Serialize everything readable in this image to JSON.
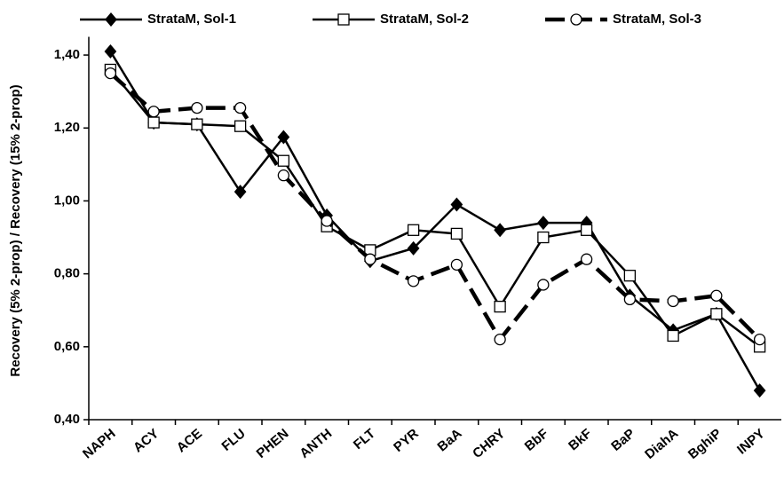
{
  "chart_data": {
    "type": "line",
    "y_label": "Recovery  (5% 2-prop) / Recovery (15% 2-prop)",
    "categories": [
      "NAPH",
      "ACY",
      "ACE",
      "FLU",
      "PHEN",
      "ANTH",
      "FLT",
      "PYR",
      "BaA",
      "CHRY",
      "BbF",
      "BkF",
      "BaP",
      "DiahA",
      "BghiP",
      "INPY"
    ],
    "series": [
      {
        "name": "StrataM, Sol-1",
        "color": "#000000",
        "marker": "diamond",
        "dash": false,
        "values": [
          1.41,
          1.215,
          1.21,
          1.025,
          1.175,
          0.96,
          0.835,
          0.87,
          0.99,
          0.92,
          0.94,
          0.94,
          0.74,
          0.645,
          0.69,
          0.48
        ]
      },
      {
        "name": "StrataM, Sol-2",
        "color": "#000000",
        "marker": "square",
        "dash": false,
        "values": [
          1.36,
          1.215,
          1.21,
          1.205,
          1.11,
          0.93,
          0.865,
          0.92,
          0.91,
          0.71,
          0.9,
          0.92,
          0.795,
          0.63,
          0.69,
          0.6
        ]
      },
      {
        "name": "StrataM, Sol-3",
        "color": "#000000",
        "marker": "circle",
        "dash": true,
        "values": [
          1.35,
          1.245,
          1.255,
          1.255,
          1.07,
          0.945,
          0.84,
          0.78,
          0.825,
          0.62,
          0.77,
          0.84,
          0.73,
          0.725,
          0.74,
          0.62
        ]
      }
    ],
    "ylim": [
      0.4,
      1.45
    ],
    "yticks": [
      {
        "value": 0.4,
        "label": "0,40"
      },
      {
        "value": 0.6,
        "label": "0,60"
      },
      {
        "value": 0.8,
        "label": "0,80"
      },
      {
        "value": 1.0,
        "label": "1,00"
      },
      {
        "value": 1.2,
        "label": "1,20"
      },
      {
        "value": 1.4,
        "label": "1,40"
      }
    ],
    "grid": false,
    "legend": "top"
  }
}
